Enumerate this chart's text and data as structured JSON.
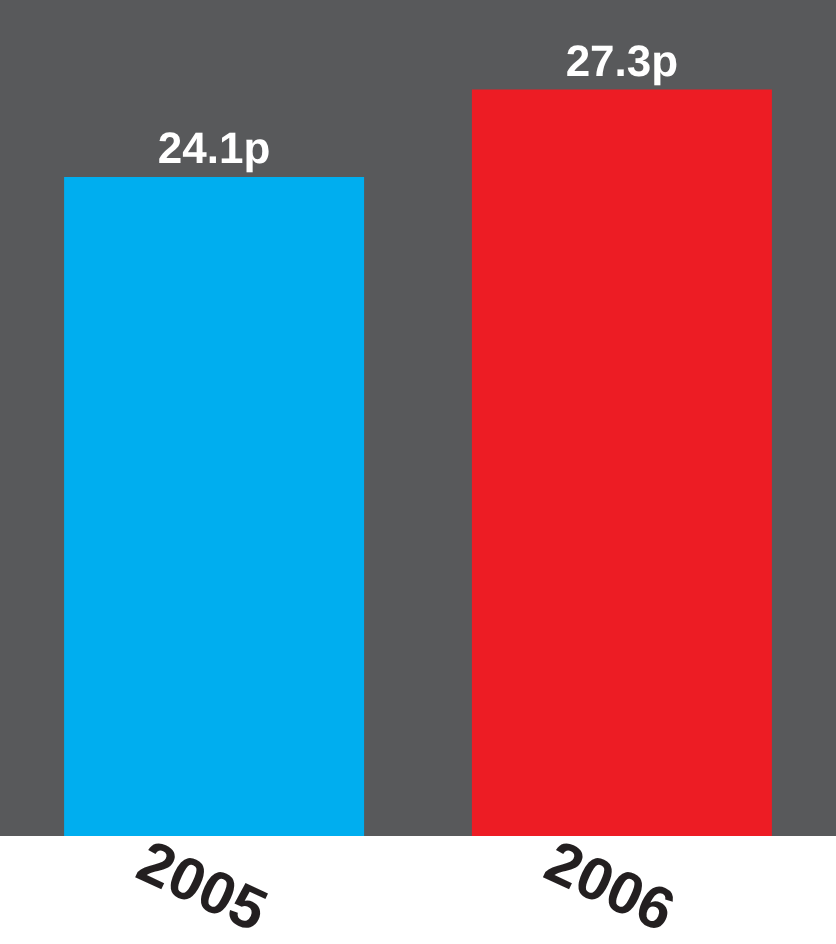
{
  "chart_data": {
    "type": "bar",
    "categories": [
      "2005",
      "2006"
    ],
    "values": [
      24.1,
      27.3
    ],
    "colors": [
      "#00aeef",
      "#ed1c24"
    ],
    "value_labels": [
      "24.1p",
      "27.3p"
    ],
    "grid": false,
    "legend": false
  }
}
